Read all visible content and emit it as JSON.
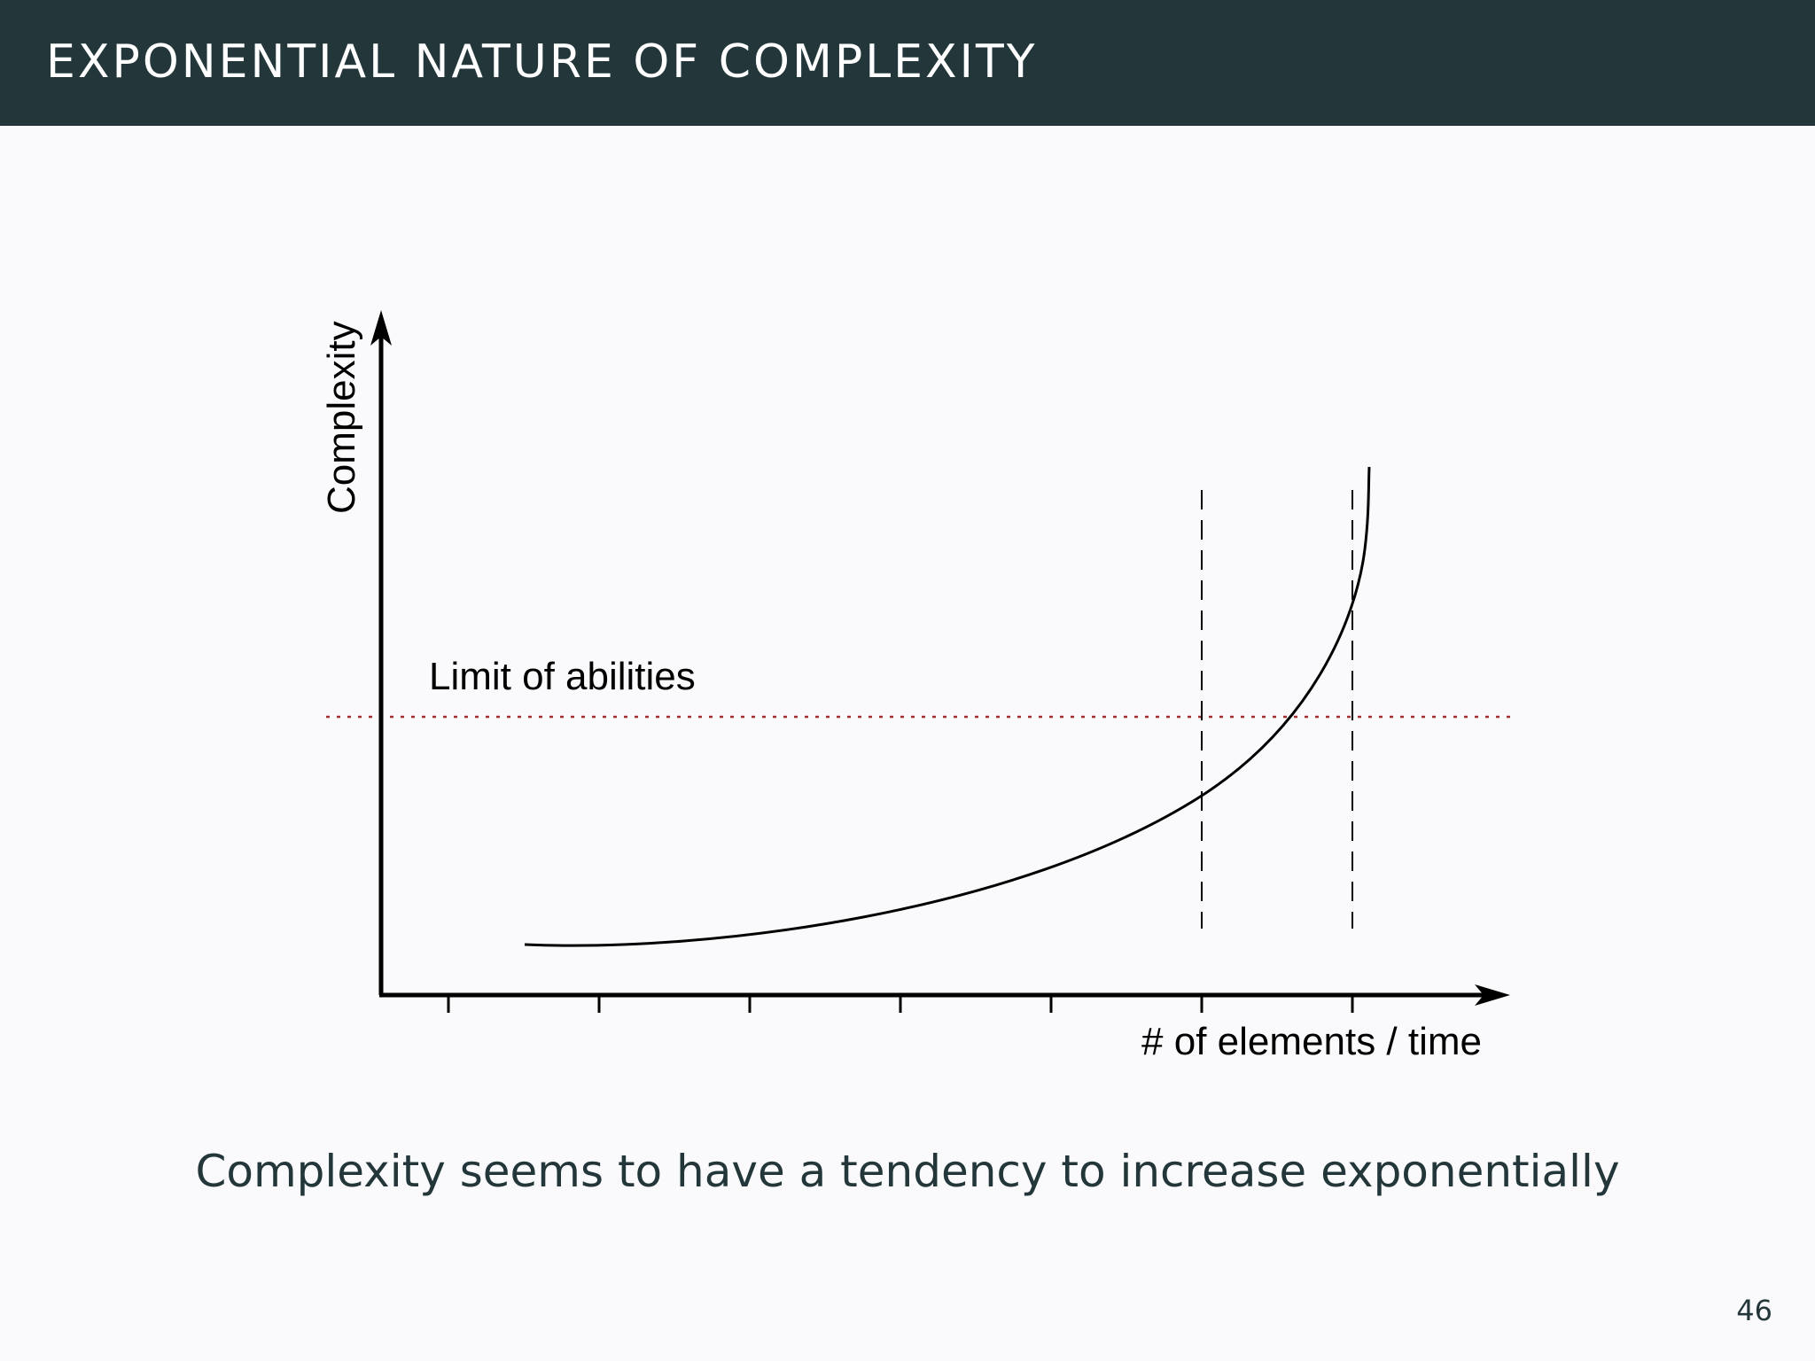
{
  "slide": {
    "title": "EXPONENTIAL NATURE OF COMPLEXITY",
    "caption": "Complexity seems to have a tendency to increase exponentially",
    "page_number": "46"
  },
  "diagram": {
    "y_axis_label": "Complexity",
    "x_axis_label": "# of elements / time",
    "threshold_label": "Limit of abilities",
    "threshold_color": "#a0322d"
  },
  "colors": {
    "header_bg": "#23373b",
    "slide_bg": "#fafafc"
  }
}
